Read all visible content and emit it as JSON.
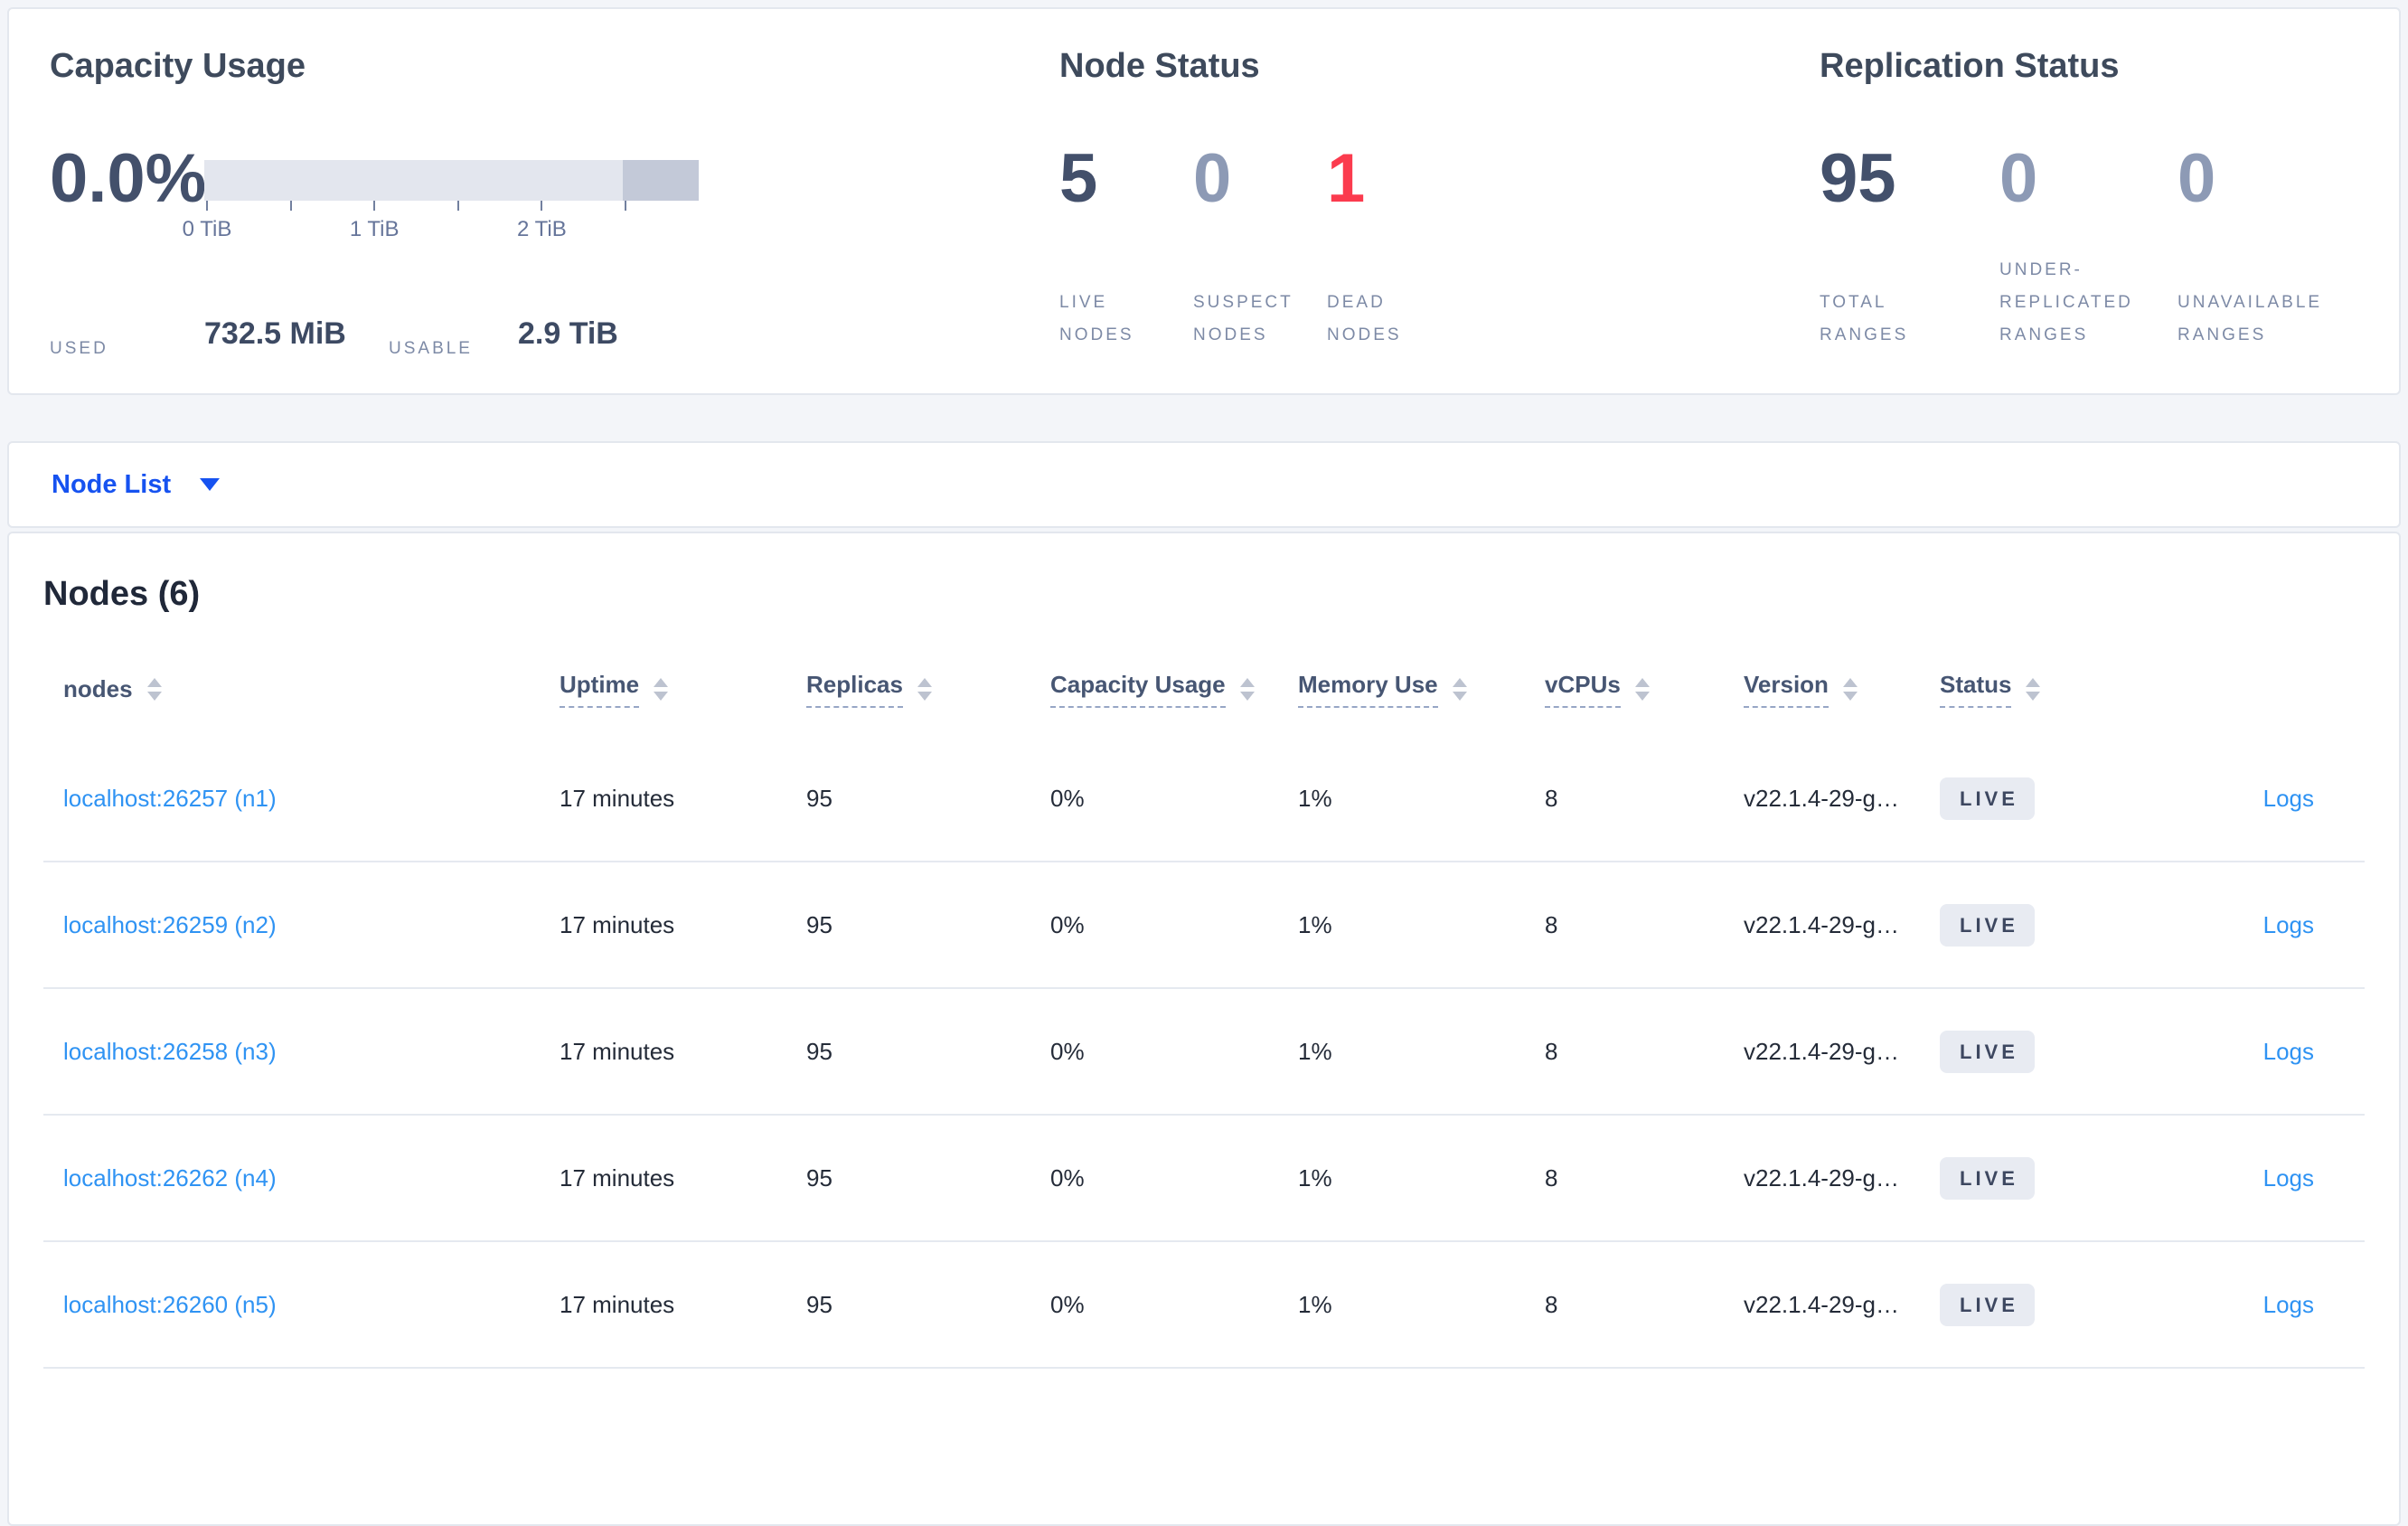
{
  "summary": {
    "capacity": {
      "title": "Capacity Usage",
      "percent": "0.0%",
      "bar_light_percent": 84.6,
      "tick_labels": [
        "0 TiB",
        "1 TiB",
        "2 TiB"
      ],
      "used_label": "USED",
      "used_value": "732.5 MiB",
      "usable_label": "USABLE",
      "usable_value": "2.9 TiB"
    },
    "node_status": {
      "title": "Node Status",
      "metrics": [
        {
          "value": "5",
          "tone": "primary",
          "label_lines": [
            "LIVE",
            "NODES"
          ]
        },
        {
          "value": "0",
          "tone": "muted",
          "label_lines": [
            "SUSPECT",
            "NODES"
          ]
        },
        {
          "value": "1",
          "tone": "danger",
          "label_lines": [
            "DEAD",
            "NODES"
          ]
        }
      ]
    },
    "replication_status": {
      "title": "Replication Status",
      "metrics": [
        {
          "value": "95",
          "tone": "primary",
          "label_lines": [
            "TOTAL",
            "RANGES"
          ]
        },
        {
          "value": "0",
          "tone": "muted",
          "label_lines": [
            "UNDER-",
            "REPLICATED",
            "RANGES"
          ]
        },
        {
          "value": "0",
          "tone": "muted",
          "label_lines": [
            "UNAVAILABLE",
            "RANGES"
          ]
        }
      ]
    }
  },
  "view_selector": {
    "label": "Node List"
  },
  "nodes_section": {
    "heading": "Nodes (6)",
    "columns": [
      {
        "label": "nodes",
        "dashed": false
      },
      {
        "label": "Uptime",
        "dashed": true
      },
      {
        "label": "Replicas",
        "dashed": true
      },
      {
        "label": "Capacity Usage",
        "dashed": true
      },
      {
        "label": "Memory Use",
        "dashed": true
      },
      {
        "label": "vCPUs",
        "dashed": true
      },
      {
        "label": "Version",
        "dashed": true
      },
      {
        "label": "Status",
        "dashed": true
      }
    ],
    "logs_label": "Logs",
    "rows": [
      {
        "node": "localhost:26257 (n1)",
        "uptime": "17 minutes",
        "replicas": "95",
        "capacity_usage": "0%",
        "memory_use": "1%",
        "vcpus": "8",
        "version": "v22.1.4-29-g…",
        "status": "LIVE"
      },
      {
        "node": "localhost:26259 (n2)",
        "uptime": "17 minutes",
        "replicas": "95",
        "capacity_usage": "0%",
        "memory_use": "1%",
        "vcpus": "8",
        "version": "v22.1.4-29-g…",
        "status": "LIVE"
      },
      {
        "node": "localhost:26258 (n3)",
        "uptime": "17 minutes",
        "replicas": "95",
        "capacity_usage": "0%",
        "memory_use": "1%",
        "vcpus": "8",
        "version": "v22.1.4-29-g…",
        "status": "LIVE"
      },
      {
        "node": "localhost:26262 (n4)",
        "uptime": "17 minutes",
        "replicas": "95",
        "capacity_usage": "0%",
        "memory_use": "1%",
        "vcpus": "8",
        "version": "v22.1.4-29-g…",
        "status": "LIVE"
      },
      {
        "node": "localhost:26260 (n5)",
        "uptime": "17 minutes",
        "replicas": "95",
        "capacity_usage": "0%",
        "memory_use": "1%",
        "vcpus": "8",
        "version": "v22.1.4-29-g…",
        "status": "LIVE"
      }
    ]
  },
  "colors": {
    "primary_number": "#43506b",
    "muted_number": "#8d9ab5",
    "danger_red": "#fb3b4e",
    "link_blue": "#2f93f3",
    "selector_blue": "#1652f0",
    "badge_bg": "#e8ebf2",
    "bar_light": "#e3e6ee",
    "bar_dark": "#c3c9d8"
  }
}
